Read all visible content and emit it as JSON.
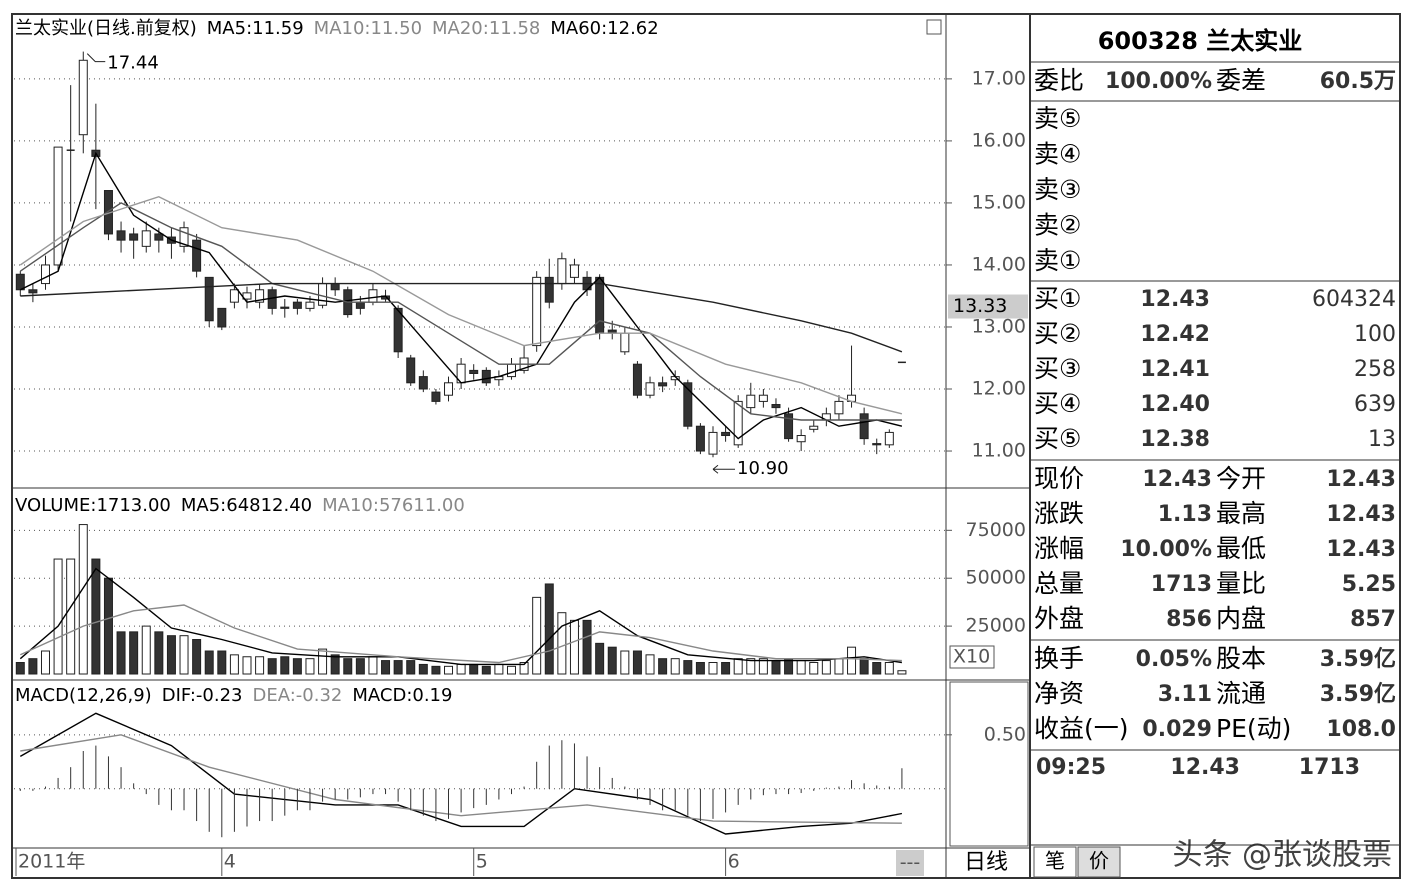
{
  "chart_data": [
    {
      "type": "candlestick",
      "title": "兰太实业(日线.前复权)",
      "open": [
        13.85,
        13.6,
        13.7,
        14.0,
        15.85,
        16.1,
        15.85,
        15.2,
        14.55,
        14.5,
        14.3,
        14.5,
        14.45,
        14.3,
        14.4,
        13.8,
        13.3,
        13.4,
        13.45,
        13.4,
        13.6,
        13.32,
        13.4,
        13.3,
        13.35,
        13.7,
        13.6,
        13.4,
        13.4,
        13.5,
        13.3,
        12.5,
        12.2,
        11.95,
        11.9,
        12.1,
        12.3,
        12.3,
        12.15,
        12.2,
        12.3,
        12.7,
        13.8,
        13.7,
        13.8,
        13.8,
        13.8,
        12.95,
        12.6,
        12.4,
        11.9,
        12.1,
        12.15,
        12.1,
        11.4,
        10.95,
        11.3,
        11.1,
        11.7,
        11.8,
        11.75,
        11.6,
        11.15,
        11.35,
        11.5,
        11.6,
        11.8,
        11.6,
        11.12,
        11.1,
        12.43
      ],
      "high": [
        13.9,
        13.7,
        14.15,
        15.9,
        16.9,
        17.44,
        16.6,
        15.2,
        14.7,
        14.6,
        14.7,
        14.6,
        14.6,
        14.7,
        14.5,
        13.8,
        13.3,
        13.7,
        13.65,
        13.7,
        13.65,
        13.45,
        13.45,
        13.5,
        13.8,
        13.8,
        13.65,
        13.5,
        13.7,
        13.6,
        13.35,
        12.55,
        12.3,
        12.0,
        12.2,
        12.5,
        12.4,
        12.35,
        12.3,
        12.5,
        12.7,
        13.9,
        14.1,
        14.2,
        14.1,
        13.9,
        13.85,
        13.1,
        13.0,
        12.45,
        12.2,
        12.2,
        12.3,
        12.15,
        11.45,
        11.4,
        11.4,
        11.9,
        12.1,
        12.0,
        11.85,
        11.7,
        11.35,
        11.5,
        11.7,
        11.9,
        12.7,
        11.7,
        11.2,
        11.35,
        12.43
      ],
      "low": [
        13.5,
        13.4,
        13.6,
        13.9,
        14.7,
        15.8,
        14.9,
        14.4,
        14.2,
        14.1,
        14.2,
        14.2,
        14.1,
        14.2,
        13.8,
        13.0,
        12.95,
        13.3,
        13.3,
        13.3,
        13.2,
        13.15,
        13.2,
        13.25,
        13.3,
        13.5,
        13.15,
        13.2,
        13.35,
        13.4,
        12.5,
        12.05,
        11.95,
        11.75,
        11.8,
        12.0,
        12.15,
        12.05,
        12.05,
        12.15,
        12.25,
        12.6,
        13.3,
        13.6,
        13.7,
        13.5,
        12.8,
        12.8,
        12.55,
        11.85,
        11.85,
        11.95,
        12.05,
        11.35,
        10.95,
        10.9,
        11.15,
        11.05,
        11.6,
        11.7,
        11.6,
        11.15,
        11.0,
        11.3,
        11.4,
        11.5,
        11.7,
        11.1,
        10.95,
        11.05,
        12.43
      ],
      "close": [
        13.6,
        13.55,
        14.0,
        15.9,
        15.85,
        17.3,
        15.75,
        14.5,
        14.4,
        14.4,
        14.55,
        14.4,
        14.35,
        14.6,
        13.9,
        13.1,
        13.0,
        13.6,
        13.55,
        13.6,
        13.3,
        13.3,
        13.3,
        13.4,
        13.7,
        13.6,
        13.2,
        13.3,
        13.6,
        13.45,
        12.6,
        12.1,
        12.0,
        11.8,
        12.1,
        12.4,
        12.25,
        12.1,
        12.2,
        12.4,
        12.5,
        13.8,
        13.4,
        14.1,
        14.0,
        13.6,
        12.9,
        12.9,
        12.9,
        11.9,
        12.1,
        12.05,
        12.2,
        11.4,
        11.0,
        11.3,
        11.25,
        11.8,
        11.9,
        11.9,
        11.7,
        11.2,
        11.25,
        11.4,
        11.6,
        11.8,
        11.9,
        11.2,
        11.1,
        11.3,
        12.43
      ],
      "series": [
        {
          "name": "MA5:11.59",
          "type": "line",
          "color": "#000000",
          "x": [
            0,
            3,
            6,
            9,
            12,
            15,
            18,
            21,
            25,
            29,
            32,
            35,
            38,
            41,
            44,
            46,
            49,
            52,
            55,
            57,
            59,
            62,
            65,
            68,
            70
          ],
          "values": [
            13.6,
            13.9,
            15.8,
            14.8,
            14.4,
            14.2,
            13.4,
            13.5,
            13.4,
            13.5,
            12.8,
            12.1,
            12.2,
            12.4,
            13.4,
            13.8,
            13.0,
            12.2,
            11.6,
            11.2,
            11.5,
            11.7,
            11.4,
            11.5,
            11.4
          ]
        },
        {
          "name": "MA10:11.50",
          "type": "line",
          "color": "#555555",
          "x": [
            0,
            5,
            8,
            12,
            16,
            20,
            26,
            30,
            34,
            38,
            42,
            46,
            50,
            54,
            58,
            62,
            66,
            70
          ],
          "values": [
            13.9,
            14.6,
            15.0,
            14.6,
            14.3,
            13.7,
            13.4,
            13.4,
            12.9,
            12.4,
            12.4,
            13.1,
            12.9,
            12.2,
            11.6,
            11.5,
            11.5,
            11.5
          ]
        },
        {
          "name": "MA20:11.58",
          "type": "line",
          "color": "#999999",
          "x": [
            0,
            5,
            11,
            16,
            22,
            28,
            34,
            40,
            46,
            50,
            56,
            62,
            66,
            70
          ],
          "values": [
            14.0,
            14.7,
            15.1,
            14.6,
            14.4,
            13.9,
            13.2,
            12.7,
            12.9,
            12.9,
            12.4,
            12.1,
            11.8,
            11.6
          ]
        },
        {
          "name": "MA60:12.62",
          "type": "line",
          "color": "#222222",
          "x": [
            0,
            10,
            20,
            30,
            40,
            46,
            55,
            62,
            66,
            70
          ],
          "values": [
            13.5,
            13.6,
            13.7,
            13.7,
            13.7,
            13.7,
            13.4,
            13.1,
            12.9,
            12.6
          ]
        }
      ],
      "annotations": [
        {
          "value": 17.44,
          "kind": "high"
        },
        {
          "value": 10.9,
          "label": "10.90",
          "kind": "low"
        }
      ],
      "price_marker": 13.33,
      "xlim": [
        -0.5,
        73.5
      ],
      "xticks": [
        {
          "value": 0,
          "label": "2011年"
        },
        {
          "value": 16,
          "label": "4"
        },
        {
          "value": 36,
          "label": "5"
        },
        {
          "value": 56,
          "label": "6"
        }
      ],
      "ylim": [
        10.42,
        18.03
      ],
      "yticks": [
        {
          "value": 11,
          "label": "11.00"
        },
        {
          "value": 12,
          "label": "12.00"
        },
        {
          "value": 13,
          "label": "13.00"
        },
        {
          "value": 14,
          "label": "14.00"
        },
        {
          "value": 15,
          "label": "15.00"
        },
        {
          "value": 16,
          "label": "16.00"
        },
        {
          "value": 17,
          "label": "17.00"
        }
      ],
      "grid": true
    },
    {
      "type": "bar",
      "xlim": [
        -0.5,
        73.5
      ],
      "ylim": [
        0,
        95000
      ],
      "yticks": [
        25000,
        50000,
        75000
      ],
      "grid": true,
      "axis_note": "X10",
      "series": [
        {
          "name": "VOLUME:1713.00",
          "type": "bar",
          "color": "#333333",
          "values": [
            6000,
            8000,
            12000,
            60000,
            60000,
            78000,
            60000,
            50000,
            22000,
            22000,
            25000,
            22000,
            20000,
            20000,
            18000,
            12000,
            12000,
            10000,
            9000,
            9000,
            8000,
            9000,
            8000,
            8000,
            13000,
            10000,
            8000,
            8000,
            9000,
            7000,
            7000,
            7000,
            5000,
            4000,
            4000,
            5000,
            5000,
            4000,
            5000,
            4000,
            6000,
            40000,
            47000,
            32000,
            28000,
            28000,
            16000,
            14000,
            12000,
            12000,
            10000,
            8000,
            8000,
            7000,
            6000,
            6000,
            6000,
            8000,
            8000,
            8000,
            7000,
            8000,
            7000,
            6000,
            7000,
            8000,
            14000,
            8000,
            6000,
            6000,
            1713
          ]
        },
        {
          "name": "MA5:64812.40",
          "type": "line",
          "color": "#000000",
          "x": [
            0,
            3,
            6,
            9,
            12,
            16,
            20,
            25,
            30,
            35,
            40,
            43,
            46,
            49,
            53,
            58,
            63,
            67,
            70
          ],
          "values": [
            8000,
            25000,
            55000,
            40000,
            24000,
            18000,
            11000,
            9000,
            9000,
            5000,
            5000,
            25000,
            33000,
            20000,
            10000,
            7000,
            7000,
            9000,
            6000
          ]
        },
        {
          "name": "MA10:57611.00",
          "type": "line",
          "color": "#888888",
          "x": [
            0,
            5,
            9,
            13,
            17,
            22,
            30,
            38,
            42,
            46,
            50,
            55,
            60,
            66,
            70
          ],
          "values": [
            10000,
            25000,
            33000,
            36000,
            24000,
            13000,
            9000,
            6000,
            12000,
            22000,
            19000,
            12000,
            8000,
            8000,
            7000
          ]
        }
      ]
    },
    {
      "type": "line",
      "title": "MACD(12,26,9)",
      "xlim": [
        -0.5,
        73.5
      ],
      "ylim": [
        -0.55,
        0.99
      ],
      "yticks": [
        {
          "value": 0.5,
          "label": "0.50"
        }
      ],
      "grid": true,
      "series": [
        {
          "name": "DIF:-0.23",
          "type": "line",
          "color": "#000000",
          "x": [
            0,
            6,
            12,
            17,
            25,
            30,
            35,
            40,
            44,
            50,
            56,
            62,
            66,
            70
          ],
          "values": [
            0.3,
            0.7,
            0.4,
            -0.05,
            -0.15,
            -0.15,
            -0.35,
            -0.35,
            0.0,
            -0.1,
            -0.42,
            -0.35,
            -0.32,
            -0.23
          ]
        },
        {
          "name": "DEA:-0.32",
          "type": "line",
          "color": "#888888",
          "x": [
            0,
            8,
            15,
            25,
            35,
            45,
            55,
            70
          ],
          "values": [
            0.35,
            0.5,
            0.2,
            -0.1,
            -0.25,
            -0.15,
            -0.3,
            -0.32
          ]
        },
        {
          "name": "MACD:0.19",
          "type": "bar",
          "color": "#333333",
          "values": [
            -0.02,
            -0.02,
            0.02,
            0.1,
            0.2,
            0.35,
            0.4,
            0.3,
            0.2,
            0.05,
            -0.05,
            -0.15,
            -0.2,
            -0.2,
            -0.3,
            -0.4,
            -0.45,
            -0.4,
            -0.35,
            -0.3,
            -0.3,
            -0.25,
            -0.2,
            -0.2,
            -0.12,
            -0.1,
            -0.1,
            -0.08,
            -0.05,
            -0.05,
            -0.12,
            -0.2,
            -0.25,
            -0.3,
            -0.28,
            -0.22,
            -0.18,
            -0.15,
            -0.1,
            -0.05,
            0.02,
            0.25,
            0.4,
            0.45,
            0.42,
            0.3,
            0.2,
            0.1,
            0.02,
            -0.1,
            -0.15,
            -0.2,
            -0.2,
            -0.25,
            -0.3,
            -0.28,
            -0.22,
            -0.15,
            -0.1,
            -0.06,
            -0.05,
            -0.05,
            -0.04,
            -0.02,
            0.01,
            0.02,
            0.08,
            0.05,
            0.03,
            0.02,
            0.19
          ]
        }
      ]
    }
  ],
  "period_label": "日线",
  "scroll_label": "---",
  "quote": {
    "code_name": "600328 兰太实业",
    "ratio": [
      "委比",
      "100.00%",
      "委差",
      "60.5万"
    ],
    "asks": [
      "卖⑤",
      "卖④",
      "卖③",
      "卖②",
      "卖①"
    ],
    "bids": [
      [
        "买①",
        "12.43",
        "604324"
      ],
      [
        "买②",
        "12.42",
        "100"
      ],
      [
        "买③",
        "12.41",
        "258"
      ],
      [
        "买④",
        "12.40",
        "639"
      ],
      [
        "买⑤",
        "12.38",
        "13"
      ]
    ],
    "stats": [
      [
        "现价",
        "12.43",
        "今开",
        "12.43"
      ],
      [
        "涨跌",
        "1.13",
        "最高",
        "12.43"
      ],
      [
        "涨幅",
        "10.00%",
        "最低",
        "12.43"
      ],
      [
        "总量",
        "1713",
        "量比",
        "5.25"
      ],
      [
        "外盘",
        "856",
        "内盘",
        "857"
      ]
    ],
    "fundamentals": [
      [
        "换手",
        "0.05%",
        "股本",
        "3.59亿"
      ],
      [
        "净资",
        "3.11",
        "流通",
        "3.59亿"
      ],
      [
        "收益(一)",
        "0.029",
        "PE(动)",
        "108.0"
      ]
    ],
    "ticks": [
      [
        "09:25",
        "12.43",
        "1713"
      ]
    ],
    "tabs": [
      "笔",
      "价"
    ],
    "watermark": "头条 @张谈股票"
  }
}
